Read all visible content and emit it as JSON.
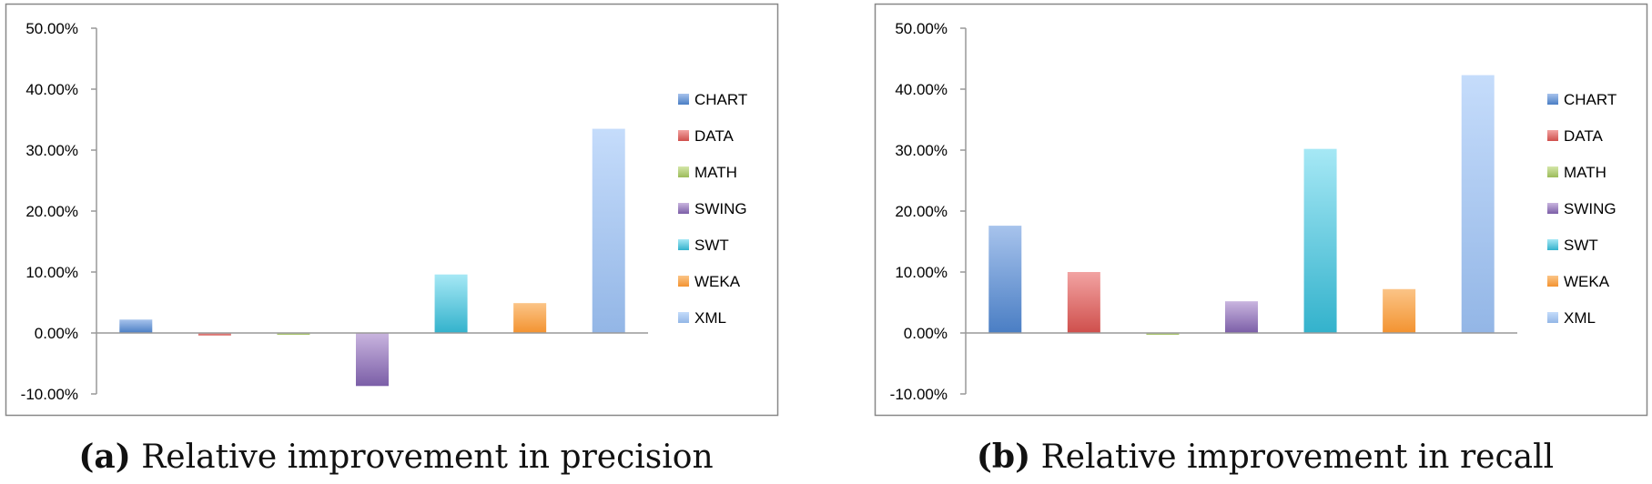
{
  "colors": {
    "CHART": [
      "#a7c3ec",
      "#4a7ec4"
    ],
    "DATA": [
      "#f2a3a2",
      "#cf4f4c"
    ],
    "MATH": [
      "#d4e6a8",
      "#9bbb59"
    ],
    "SWING": [
      "#c9b5df",
      "#7b5ea7"
    ],
    "SWT": [
      "#a6e8f5",
      "#33b2cc"
    ],
    "WEKA": [
      "#fbc487",
      "#f39330"
    ],
    "XML": [
      "#c5dcfb",
      "#93b6e6"
    ],
    "frame": "#888888",
    "axis": "#999999",
    "text": "#000000"
  },
  "chart_data": [
    {
      "type": "bar",
      "categories": [
        "CHART",
        "DATA",
        "MATH",
        "SWING",
        "SWT",
        "WEKA",
        "XML"
      ],
      "values": [
        2.2,
        -0.4,
        -0.3,
        -8.7,
        9.6,
        4.9,
        33.5
      ],
      "ylim": [
        -10,
        50
      ],
      "yticks": [
        "-10.00%",
        "0.00%",
        "10.00%",
        "20.00%",
        "30.00%",
        "40.00%",
        "50.00%"
      ],
      "legend": [
        "CHART",
        "DATA",
        "MATH",
        "SWING",
        "SWT",
        "WEKA",
        "XML"
      ],
      "legend_position": "right",
      "grid": false,
      "caption_tag": "(a)",
      "caption_text": " Relative improvement in precision"
    },
    {
      "type": "bar",
      "categories": [
        "CHART",
        "DATA",
        "MATH",
        "SWING",
        "SWT",
        "WEKA",
        "XML"
      ],
      "values": [
        17.6,
        10.0,
        -0.3,
        5.2,
        30.2,
        7.2,
        42.3
      ],
      "ylim": [
        -10,
        50
      ],
      "yticks": [
        "-10.00%",
        "0.00%",
        "10.00%",
        "20.00%",
        "30.00%",
        "40.00%",
        "50.00%"
      ],
      "legend": [
        "CHART",
        "DATA",
        "MATH",
        "SWING",
        "SWT",
        "WEKA",
        "XML"
      ],
      "legend_position": "right",
      "grid": false,
      "caption_tag": "(b)",
      "caption_text": " Relative improvement in recall"
    }
  ]
}
